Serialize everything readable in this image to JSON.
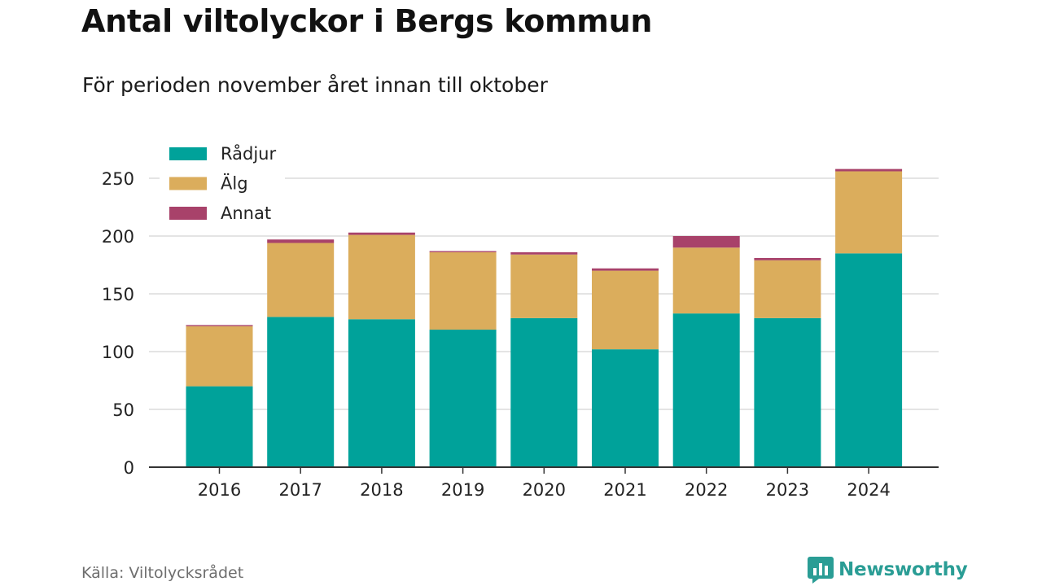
{
  "title": "Antal viltolyckor i Bergs kommun",
  "subtitle": "För perioden november året innan till oktober",
  "source": "Källa: Viltolycksrådet",
  "brand": {
    "name": "Newsworthy",
    "icon": "newsworthy-logo-icon"
  },
  "colors": {
    "Rådjur": "#00a29a",
    "Älg": "#dbad5c",
    "Annat": "#a8426a",
    "grid": "#dcdcdc",
    "axis": "#333333"
  },
  "chart_data": {
    "type": "bar",
    "stacked": true,
    "categories": [
      "2016",
      "2017",
      "2018",
      "2019",
      "2020",
      "2021",
      "2022",
      "2023",
      "2024"
    ],
    "series": [
      {
        "name": "Rådjur",
        "values": [
          70,
          130,
          128,
          119,
          129,
          102,
          133,
          129,
          185
        ]
      },
      {
        "name": "Älg",
        "values": [
          52,
          64,
          73,
          67,
          55,
          68,
          57,
          50,
          71
        ]
      },
      {
        "name": "Annat",
        "values": [
          1,
          3,
          2,
          1,
          2,
          2,
          10,
          2,
          2
        ]
      }
    ],
    "ylim": [
      0,
      260
    ],
    "yticks": [
      0,
      50,
      100,
      150,
      200,
      250
    ],
    "grid": true,
    "legend": "top-left"
  }
}
